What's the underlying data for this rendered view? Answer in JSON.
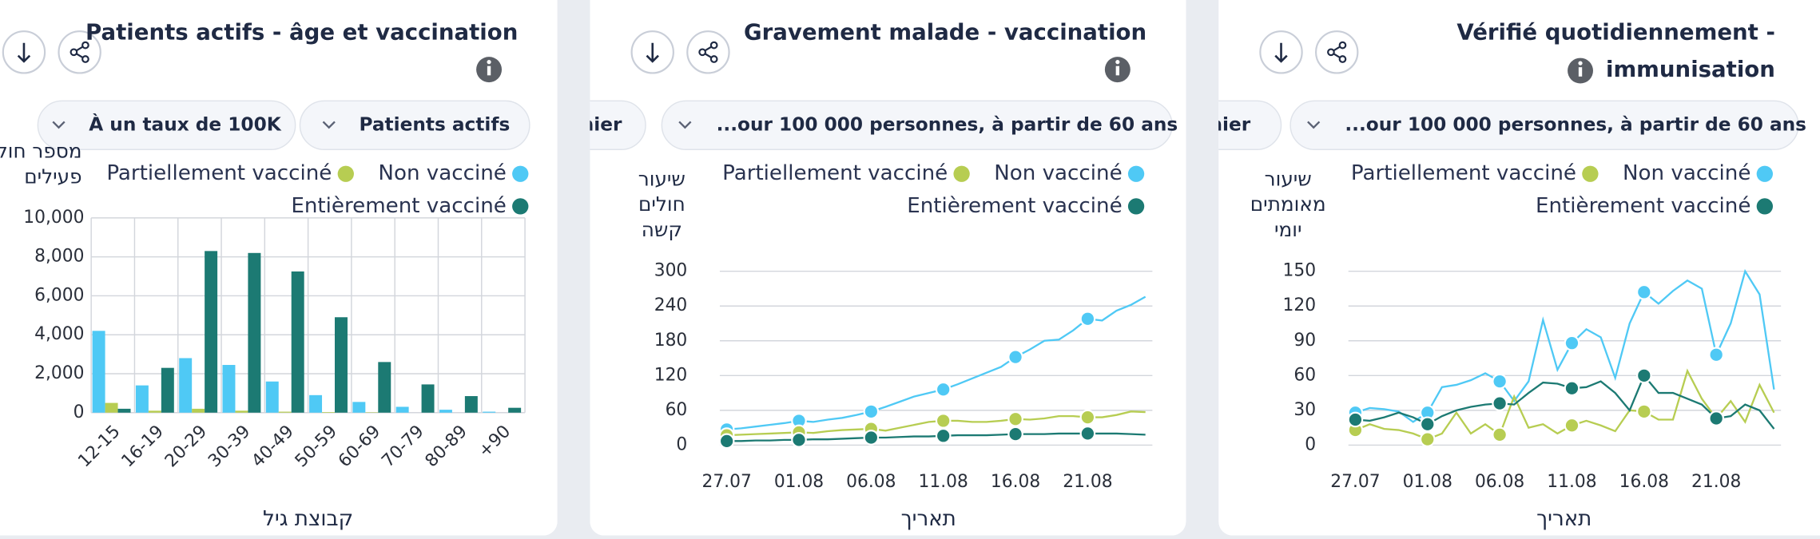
{
  "chart_data": [
    {
      "type": "bar",
      "title": "Patients actifs - âge et vaccination",
      "filters": [
        "À un taux de 100K",
        "Patients actifs"
      ],
      "y_label": "מספר חולים פעילים",
      "x_label": "קבוצת גיל",
      "categories": [
        "12-15",
        "16-19",
        "20-29",
        "30-39",
        "40-49",
        "50-59",
        "60-69",
        "70-79",
        "80-89",
        "+90"
      ],
      "series": [
        {
          "name": "Non vacciné",
          "color": "#4fc9f5",
          "values": [
            4200,
            1400,
            2800,
            2450,
            1600,
            900,
            550,
            300,
            150,
            50
          ]
        },
        {
          "name": "Partiellement vacciné",
          "color": "#b7cd52",
          "values": [
            500,
            100,
            200,
            100,
            50,
            30,
            20,
            0,
            0,
            0
          ]
        },
        {
          "name": "Entièrement vacciné",
          "color": "#1c7a73",
          "values": [
            200,
            2300,
            8300,
            8200,
            7250,
            4900,
            2600,
            1450,
            850,
            250
          ]
        }
      ],
      "ylim": [
        0,
        10000
      ],
      "yticks": [
        0,
        {
          "value": 2000,
          "label": "2,000"
        },
        {
          "value": 4000,
          "label": "4,000"
        },
        {
          "value": 6000,
          "label": "6,000"
        },
        {
          "value": 8000,
          "label": "8,000"
        },
        {
          "value": 10000,
          "label": "10,000"
        }
      ],
      "grid": true
    },
    {
      "type": "line",
      "title": "Gravement malade - vaccination",
      "filters": [
        "nier",
        "...our 100 000 personnes, à partir de 60 ans"
      ],
      "y_label": "שיעור חולים קשה",
      "x_label": "תאריך",
      "categories": [
        "27.07",
        null,
        null,
        null,
        null,
        "01.08",
        null,
        null,
        null,
        null,
        "06.08",
        null,
        null,
        null,
        null,
        "11.08",
        null,
        null,
        null,
        null,
        "16.08",
        null,
        null,
        null,
        null,
        "21.08",
        null,
        null,
        null,
        null
      ],
      "series": [
        {
          "name": "Non vacciné",
          "color": "#4fc9f5",
          "values": [
            27,
            29,
            32,
            35,
            38,
            42,
            40,
            44,
            47,
            52,
            58,
            66,
            75,
            84,
            90,
            96,
            105,
            115,
            125,
            135,
            152,
            165,
            180,
            182,
            198,
            218,
            215,
            232,
            242,
            256
          ]
        },
        {
          "name": "Partiellement vacciné",
          "color": "#b7cd52",
          "values": [
            17,
            18,
            19,
            20,
            21,
            22,
            21,
            24,
            26,
            27,
            28,
            25,
            30,
            35,
            40,
            42,
            42,
            40,
            40,
            42,
            45,
            44,
            46,
            50,
            50,
            48,
            48,
            52,
            58,
            57
          ]
        },
        {
          "name": "Entièrement vacciné",
          "color": "#1c7a73",
          "values": [
            7,
            7,
            8,
            8,
            9,
            9,
            10,
            10,
            11,
            12,
            13,
            13,
            14,
            15,
            15,
            16,
            17,
            17,
            17,
            18,
            19,
            19,
            19,
            20,
            20,
            20,
            20,
            20,
            19,
            18
          ]
        }
      ],
      "ylim": [
        0,
        300
      ],
      "yticks": [
        0,
        60,
        120,
        180,
        240,
        300
      ],
      "grid": true
    },
    {
      "type": "line",
      "title": "Vérifié quotidiennement - immunisation",
      "filters": [
        "nier",
        "...our 100 000 personnes, à partir de 60 ans"
      ],
      "y_label": "שיעור מאומתים יומי",
      "x_label": "תאריך",
      "categories": [
        "27.07",
        null,
        null,
        null,
        null,
        "01.08",
        null,
        null,
        null,
        null,
        "06.08",
        null,
        null,
        null,
        null,
        "11.08",
        null,
        null,
        null,
        null,
        "16.08",
        null,
        null,
        null,
        null,
        "21.08",
        null,
        null,
        null,
        null
      ],
      "series": [
        {
          "name": "Non vacciné",
          "color": "#4fc9f5",
          "values": [
            28,
            32,
            31,
            29,
            20,
            28,
            50,
            52,
            56,
            62,
            55,
            38,
            55,
            108,
            65,
            88,
            100,
            93,
            58,
            105,
            132,
            122,
            133,
            142,
            135,
            78,
            105,
            150,
            130,
            48
          ]
        },
        {
          "name": "Partiellement vacciné",
          "color": "#b7cd52",
          "values": [
            13,
            18,
            14,
            13,
            10,
            5,
            10,
            28,
            10,
            18,
            9,
            42,
            15,
            18,
            10,
            17,
            21,
            17,
            12,
            30,
            29,
            22,
            22,
            64,
            40,
            23,
            38,
            20,
            52,
            28
          ]
        },
        {
          "name": "Entièrement vacciné",
          "color": "#1c7a73",
          "values": [
            22,
            21,
            24,
            28,
            24,
            18,
            25,
            30,
            33,
            35,
            36,
            35,
            45,
            54,
            53,
            49,
            50,
            55,
            45,
            30,
            60,
            45,
            45,
            40,
            35,
            23,
            25,
            35,
            30,
            14
          ]
        }
      ],
      "ylim": [
        0,
        150
      ],
      "yticks": [
        0,
        30,
        60,
        90,
        120,
        150
      ],
      "grid": true
    }
  ]
}
